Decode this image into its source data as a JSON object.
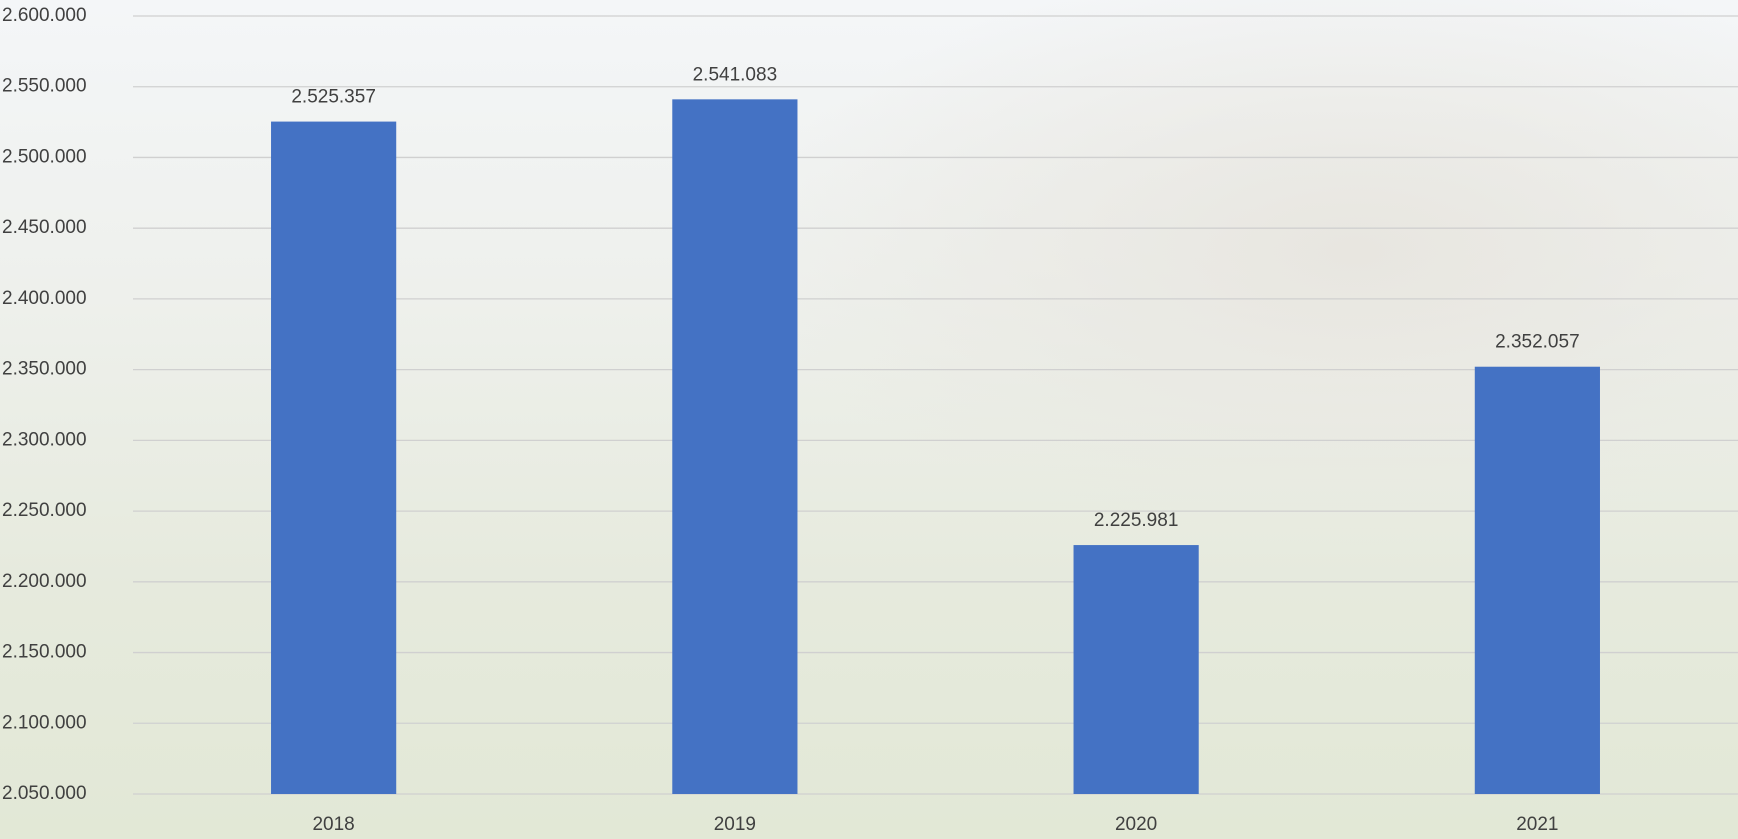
{
  "chart_data": {
    "type": "bar",
    "categories": [
      "2018",
      "2019",
      "2020",
      "2021"
    ],
    "values": [
      2525357,
      2541083,
      2225981,
      2352057
    ],
    "value_labels": [
      "2.525.357",
      "2.541.083",
      "2.225.981",
      "2.352.057"
    ],
    "color": "#4472c4",
    "ylim": [
      2050000,
      2600000
    ],
    "yticks": [
      {
        "value": 2050000,
        "label": "2.050.000"
      },
      {
        "value": 2100000,
        "label": "2.100.000"
      },
      {
        "value": 2150000,
        "label": "2.150.000"
      },
      {
        "value": 2200000,
        "label": "2.200.000"
      },
      {
        "value": 2250000,
        "label": "2.250.000"
      },
      {
        "value": 2300000,
        "label": "2.300.000"
      },
      {
        "value": 2350000,
        "label": "2.350.000"
      },
      {
        "value": 2400000,
        "label": "2.400.000"
      },
      {
        "value": 2450000,
        "label": "2.450.000"
      },
      {
        "value": 2500000,
        "label": "2.500.000"
      },
      {
        "value": 2550000,
        "label": "2.550.000"
      },
      {
        "value": 2600000,
        "label": "2.600.000"
      }
    ],
    "grid": true
  }
}
